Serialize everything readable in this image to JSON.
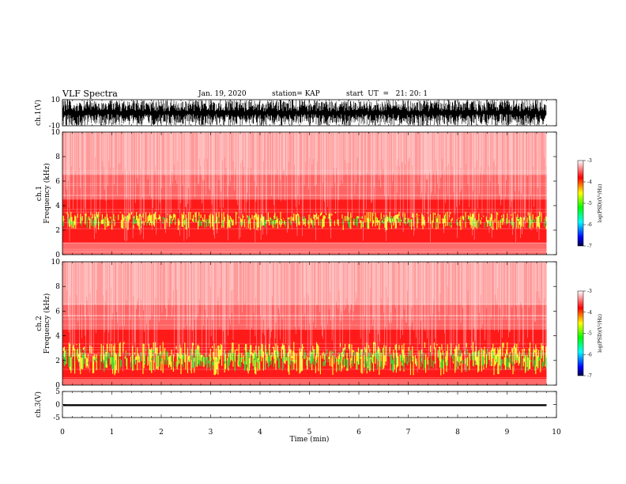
{
  "header": {
    "title": "VLF Spectra",
    "date": "Jan. 19, 2020",
    "station": "station= KAP",
    "start": "start  UT  =   21: 20: 1"
  },
  "chart_data": [
    {
      "type": "line",
      "panel": "ch1-waveform",
      "ylabel": "ch.1(V)",
      "ylim": [
        -10,
        10
      ],
      "yticks": [
        "10",
        "-10"
      ],
      "xlim": [
        0,
        10
      ],
      "x_end": 9.8,
      "range": [
        -10,
        10
      ]
    },
    {
      "type": "heatmap",
      "panel": "ch1-spectrogram",
      "ylabel": "ch.1 Frequency (kHz)",
      "ylim": [
        0,
        10
      ],
      "yticks": [
        "0",
        "2",
        "4",
        "6",
        "8",
        "10"
      ],
      "xlim": [
        0,
        10
      ],
      "x_end": 9.8,
      "strong_band_khz": [
        1,
        4.5
      ],
      "green_band_khz": [
        2,
        3.5
      ],
      "colorbar": {
        "label": "log(PSD)(V²/Hz)",
        "range": [
          -7,
          -3
        ],
        "ticks": [
          "-3",
          "-4",
          "-5",
          "-6",
          "-7"
        ]
      }
    },
    {
      "type": "heatmap",
      "panel": "ch2-spectrogram",
      "ylabel": "ch.2 Frequency (kHz)",
      "ylim": [
        0,
        10
      ],
      "yticks": [
        "0",
        "2",
        "4",
        "6",
        "8",
        "10"
      ],
      "xlim": [
        0,
        10
      ],
      "x_end": 9.8,
      "strong_band_khz": [
        0.5,
        4.5
      ],
      "green_band_khz": [
        0.8,
        3.5
      ],
      "colorbar": {
        "label": "log(PSD)(V²/Hz)",
        "range": [
          -7,
          -3
        ],
        "ticks": [
          "-3",
          "-4",
          "-5",
          "-6",
          "-7"
        ]
      }
    },
    {
      "type": "line",
      "panel": "ch3-waveform",
      "ylabel": "ch.3(V)",
      "ylim": [
        -5,
        5
      ],
      "yticks": [
        "5",
        "0",
        "-5"
      ],
      "xlim": [
        0,
        10
      ],
      "x_end": 9.8,
      "range": [
        -0.6,
        0.1
      ],
      "xlabel": "Time (min)",
      "xticks": [
        "0",
        "1",
        "2",
        "3",
        "4",
        "5",
        "6",
        "7",
        "8",
        "9",
        "10"
      ]
    }
  ],
  "colors": {
    "ink": "#000000",
    "white": "#ffffff",
    "red": "#ff1a1a",
    "yellow": "#ffff33",
    "green": "#33dd33"
  }
}
